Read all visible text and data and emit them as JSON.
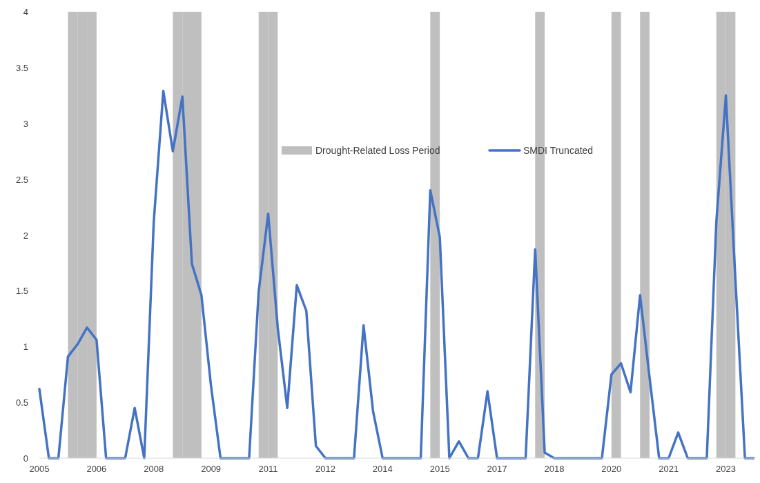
{
  "chart_data": {
    "type": "line",
    "xlim": [
      2005,
      2023.75
    ],
    "xticks": [
      {
        "value": 2005,
        "label": "2005"
      },
      {
        "value": 2006.5,
        "label": "2006"
      },
      {
        "value": 2008,
        "label": "2008"
      },
      {
        "value": 2009.5,
        "label": "2009"
      },
      {
        "value": 2011,
        "label": "2011"
      },
      {
        "value": 2012.5,
        "label": "2012"
      },
      {
        "value": 2014,
        "label": "2014"
      },
      {
        "value": 2015.5,
        "label": "2015"
      },
      {
        "value": 2017,
        "label": "2017"
      },
      {
        "value": 2018.5,
        "label": "2018"
      },
      {
        "value": 2020,
        "label": "2020"
      },
      {
        "value": 2021.5,
        "label": "2021"
      },
      {
        "value": 2023,
        "label": "2023"
      }
    ],
    "ylim": [
      0,
      4
    ],
    "yticks": [
      0,
      {
        "value": 0.5,
        "label": "0.5"
      },
      1,
      {
        "value": 1.5,
        "label": "1.5"
      },
      2,
      {
        "value": 2.5,
        "label": "2.5"
      },
      3,
      {
        "value": 3.5,
        "label": "3.5"
      },
      4
    ],
    "legend": "top",
    "series": [
      {
        "name": "Drought-Related Loss Period",
        "type": "bar",
        "color": "#bfbfbf",
        "x": [
          2005.875,
          2006.125,
          2006.375,
          2008.625,
          2008.875,
          2009.125,
          2010.875,
          2011.125,
          2015.375,
          2018.125,
          2020.125,
          2020.875,
          2022.875,
          2023.125
        ],
        "values": [
          4,
          4,
          4,
          4,
          4,
          4,
          4,
          4,
          4,
          4,
          4,
          4,
          4,
          4
        ]
      },
      {
        "name": "SMDI Truncated",
        "color": "#4472c4",
        "x": [
          2005,
          2005.25,
          2005.5,
          2005.75,
          2006,
          2006.25,
          2006.5,
          2006.75,
          2007,
          2007.25,
          2007.5,
          2007.75,
          2008,
          2008.25,
          2008.5,
          2008.75,
          2009,
          2009.25,
          2009.5,
          2009.75,
          2010,
          2010.25,
          2010.5,
          2010.75,
          2011,
          2011.25,
          2011.5,
          2011.75,
          2012,
          2012.25,
          2012.5,
          2012.75,
          2013,
          2013.25,
          2013.5,
          2013.75,
          2014,
          2014.25,
          2014.5,
          2014.75,
          2015,
          2015.25,
          2015.5,
          2015.75,
          2016,
          2016.25,
          2016.5,
          2016.75,
          2017,
          2017.25,
          2017.5,
          2017.75,
          2018,
          2018.25,
          2018.5,
          2018.75,
          2019,
          2019.25,
          2019.5,
          2019.75,
          2020,
          2020.25,
          2020.5,
          2020.75,
          2021,
          2021.25,
          2021.5,
          2021.75,
          2022,
          2022.25,
          2022.5,
          2022.75,
          2023,
          2023.25,
          2023.5,
          2023.75
        ],
        "values": [
          0.62,
          0,
          0,
          0.91,
          1.02,
          1.17,
          1.06,
          0,
          0,
          0,
          0.45,
          0,
          2.12,
          3.29,
          2.75,
          3.24,
          1.74,
          1.46,
          0.65,
          0,
          0,
          0,
          0,
          1.49,
          2.19,
          1.17,
          0.45,
          1.55,
          1.32,
          0.11,
          0,
          0,
          0,
          0,
          1.19,
          0.42,
          0,
          0,
          0,
          0,
          0,
          2.4,
          1.98,
          0,
          0.15,
          0,
          0,
          0.6,
          0,
          0,
          0,
          0,
          1.87,
          0.05,
          0,
          0,
          0,
          0,
          0,
          0,
          0.75,
          0.85,
          0.59,
          1.46,
          0.72,
          0,
          0,
          0.23,
          0,
          0,
          0,
          2.12,
          3.25,
          1.6,
          0,
          0
        ]
      }
    ]
  }
}
